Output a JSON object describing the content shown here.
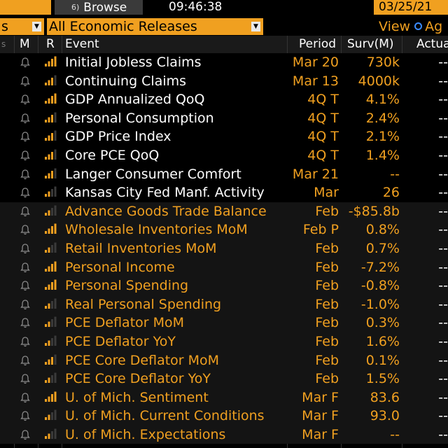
{
  "topbar": {
    "browse_key": "6)",
    "browse_label": "Browse",
    "time": "09:46:38",
    "date": "03/25/21"
  },
  "filters": {
    "left_select_value": "s",
    "releases_select_value": "All Economic Releases",
    "view_label": "View",
    "view_option": "Ag"
  },
  "columns": {
    "m": "M",
    "r": "R",
    "event": "Event",
    "period": "Period",
    "surv": "Surv(M)",
    "actual": "Actual"
  },
  "rows": [
    {
      "event": "Initial Jobless Claims",
      "period": "Mar 20",
      "surv": "730k",
      "actual": "--",
      "bars": 4,
      "shade": "dark"
    },
    {
      "event": "Continuing Claims",
      "period": "Mar 13",
      "surv": "4000k",
      "actual": "--",
      "bars": 3,
      "shade": "dark"
    },
    {
      "event": "GDP Annualized QoQ",
      "period": "4Q T",
      "surv": "4.1%",
      "actual": "--",
      "bars": 4,
      "shade": "dark"
    },
    {
      "event": "Personal Consumption",
      "period": "4Q T",
      "surv": "2.4%",
      "actual": "--",
      "bars": 3,
      "shade": "dark"
    },
    {
      "event": "GDP Price Index",
      "period": "4Q T",
      "surv": "2.1%",
      "actual": "--",
      "bars": 3,
      "shade": "dark"
    },
    {
      "event": "Core PCE QoQ",
      "period": "4Q T",
      "surv": "1.4%",
      "actual": "--",
      "bars": 3,
      "shade": "dark"
    },
    {
      "event": "Langer Consumer Comfort",
      "period": "Mar 21",
      "surv": "--",
      "actual": "--",
      "bars": 3,
      "shade": "dark"
    },
    {
      "event": "Kansas City Fed Manf. Activity",
      "period": "Mar",
      "surv": "26",
      "actual": "--",
      "bars": 2,
      "shade": "dark"
    },
    {
      "event": "Advance Goods Trade Balance",
      "period": "Feb",
      "surv": "-$85.8b",
      "actual": "--",
      "bars": 2,
      "shade": "gray"
    },
    {
      "event": "Wholesale Inventories MoM",
      "period": "Feb P",
      "surv": "0.8%",
      "actual": "--",
      "bars": 4,
      "shade": "gray"
    },
    {
      "event": "Retail Inventories MoM",
      "period": "Feb",
      "surv": "0.7%",
      "actual": "--",
      "bars": 2,
      "shade": "gray"
    },
    {
      "event": "Personal Income",
      "period": "Feb",
      "surv": "-7.2%",
      "actual": "--",
      "bars": 4,
      "shade": "gray"
    },
    {
      "event": "Personal Spending",
      "period": "Feb",
      "surv": "-0.8%",
      "actual": "--",
      "bars": 4,
      "shade": "gray"
    },
    {
      "event": "Real Personal Spending",
      "period": "Feb",
      "surv": "-1.0%",
      "actual": "--",
      "bars": 2,
      "shade": "gray"
    },
    {
      "event": "PCE Deflator MoM",
      "period": "Feb",
      "surv": "0.3%",
      "actual": "--",
      "bars": 2,
      "shade": "gray"
    },
    {
      "event": "PCE Deflator YoY",
      "period": "Feb",
      "surv": "1.6%",
      "actual": "--",
      "bars": 2,
      "shade": "gray"
    },
    {
      "event": "PCE Core Deflator MoM",
      "period": "Feb",
      "surv": "0.1%",
      "actual": "--",
      "bars": 3,
      "shade": "gray"
    },
    {
      "event": "PCE Core Deflator YoY",
      "period": "Feb",
      "surv": "1.5%",
      "actual": "--",
      "bars": 2,
      "shade": "gray"
    },
    {
      "event": "U. of Mich. Sentiment",
      "period": "Mar F",
      "surv": "83.6",
      "actual": "--",
      "bars": 4,
      "shade": "gray"
    },
    {
      "event": "U. of Mich. Current Conditions",
      "period": "Mar F",
      "surv": "93.0",
      "actual": "--",
      "bars": 2,
      "shade": "gray"
    },
    {
      "event": "U. of Mich. Expectations",
      "period": "Mar F",
      "surv": "--",
      "actual": "--",
      "bars": 2,
      "shade": "gray"
    }
  ],
  "colors": {
    "accent_orange": "#f0a020",
    "bar_active": "#f0a020",
    "bar_inactive": "#3a3a3a"
  },
  "icons": {
    "alert": "bell-icon",
    "relevance": "signal-bars-icon"
  }
}
